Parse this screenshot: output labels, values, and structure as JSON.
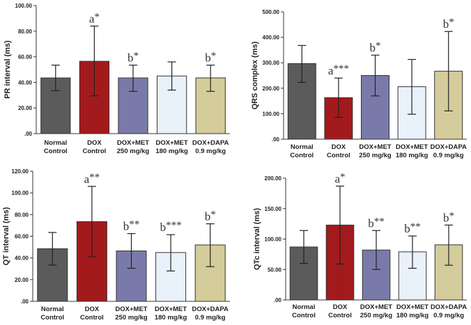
{
  "chart_data": [
    {
      "type": "bar",
      "ylabel": "PR interval (ms)",
      "ylim": [
        0,
        100
      ],
      "ticks": [
        ".00",
        "20.00",
        "40.00",
        "60.00",
        "80.00",
        "100.00"
      ],
      "categories": [
        [
          "Normal",
          "Control"
        ],
        [
          "DOX",
          "Control"
        ],
        [
          "DOX+MET",
          "250 mg/kg"
        ],
        [
          "DOX+MET",
          "180 mg/kg"
        ],
        [
          "DOX+DAPA",
          "0.9 mg/kg"
        ]
      ],
      "values": [
        43.5,
        56.5,
        43.5,
        45,
        43.5
      ],
      "error_low": [
        33.5,
        29.5,
        33,
        34,
        33
      ],
      "error_high": [
        53.5,
        84,
        53.5,
        56,
        53.5
      ],
      "annotations": [
        "",
        "a*",
        "b*",
        "",
        "b*"
      ]
    },
    {
      "type": "bar",
      "ylabel": "QRS complex (ms)",
      "ylim": [
        0,
        500
      ],
      "ticks": [
        ".00",
        "100.00",
        "200.00",
        "300.00",
        "400.00",
        "500.00"
      ],
      "categories": [
        [
          "Normal",
          "Control"
        ],
        [
          "DOX",
          "Control"
        ],
        [
          "DOX+MET",
          "250 mg/kg"
        ],
        [
          "DOX+MET",
          "180 mg/kg"
        ],
        [
          "DOX+DAPA",
          "0.9 mg/kg"
        ]
      ],
      "values": [
        297,
        163,
        250,
        206,
        267
      ],
      "error_low": [
        223,
        86,
        170,
        98,
        111
      ],
      "error_high": [
        368,
        240,
        330,
        313,
        423
      ],
      "annotations": [
        "",
        "a***",
        "b*",
        "",
        "b*"
      ]
    },
    {
      "type": "bar",
      "ylabel": "QT interval (ms)",
      "ylim": [
        0,
        120
      ],
      "ticks": [
        ".00",
        "20.00",
        "40.00",
        "60.00",
        "80.00",
        "100.00",
        "120.00"
      ],
      "categories": [
        [
          "Normal",
          "Control"
        ],
        [
          "DOX",
          "Control"
        ],
        [
          "DOX+MET",
          "250 mg/kg"
        ],
        [
          "DOX+MET",
          "180 mg/kg"
        ],
        [
          "DOX+DAPA",
          "0.9 mg/kg"
        ]
      ],
      "values": [
        48.5,
        73.5,
        46.5,
        45,
        52
      ],
      "error_low": [
        33.5,
        41,
        30.5,
        28,
        32
      ],
      "error_high": [
        63.5,
        106,
        62.5,
        61.5,
        71.5
      ],
      "annotations": [
        "",
        "a**",
        "b**",
        "b***",
        "b*"
      ]
    },
    {
      "type": "bar",
      "ylabel": "QTc interval (ms)",
      "ylim": [
        0,
        200
      ],
      "ticks": [
        ".00",
        "50.00",
        "100.00",
        "150.00",
        "200.00"
      ],
      "categories": [
        [
          "Normal",
          "Control"
        ],
        [
          "DOX",
          "Control"
        ],
        [
          "DOX+MET",
          "250 mg/kg"
        ],
        [
          "DOX+MET",
          "180 mg/kg"
        ],
        [
          "DOX+DAPA",
          "0.9 mg/kg"
        ]
      ],
      "values": [
        87,
        123,
        82,
        79,
        90.5
      ],
      "error_low": [
        60,
        59,
        50,
        52,
        57
      ],
      "error_high": [
        114,
        187,
        114,
        105,
        123
      ],
      "annotations": [
        "",
        "a*",
        "b**",
        "b**",
        "b*"
      ]
    }
  ],
  "colors": {
    "bars": [
      "#5b5b5b",
      "#a31a1c",
      "#7a7aaa",
      "#e9f1fb",
      "#d4cc9b"
    ],
    "axis": "#333333"
  }
}
